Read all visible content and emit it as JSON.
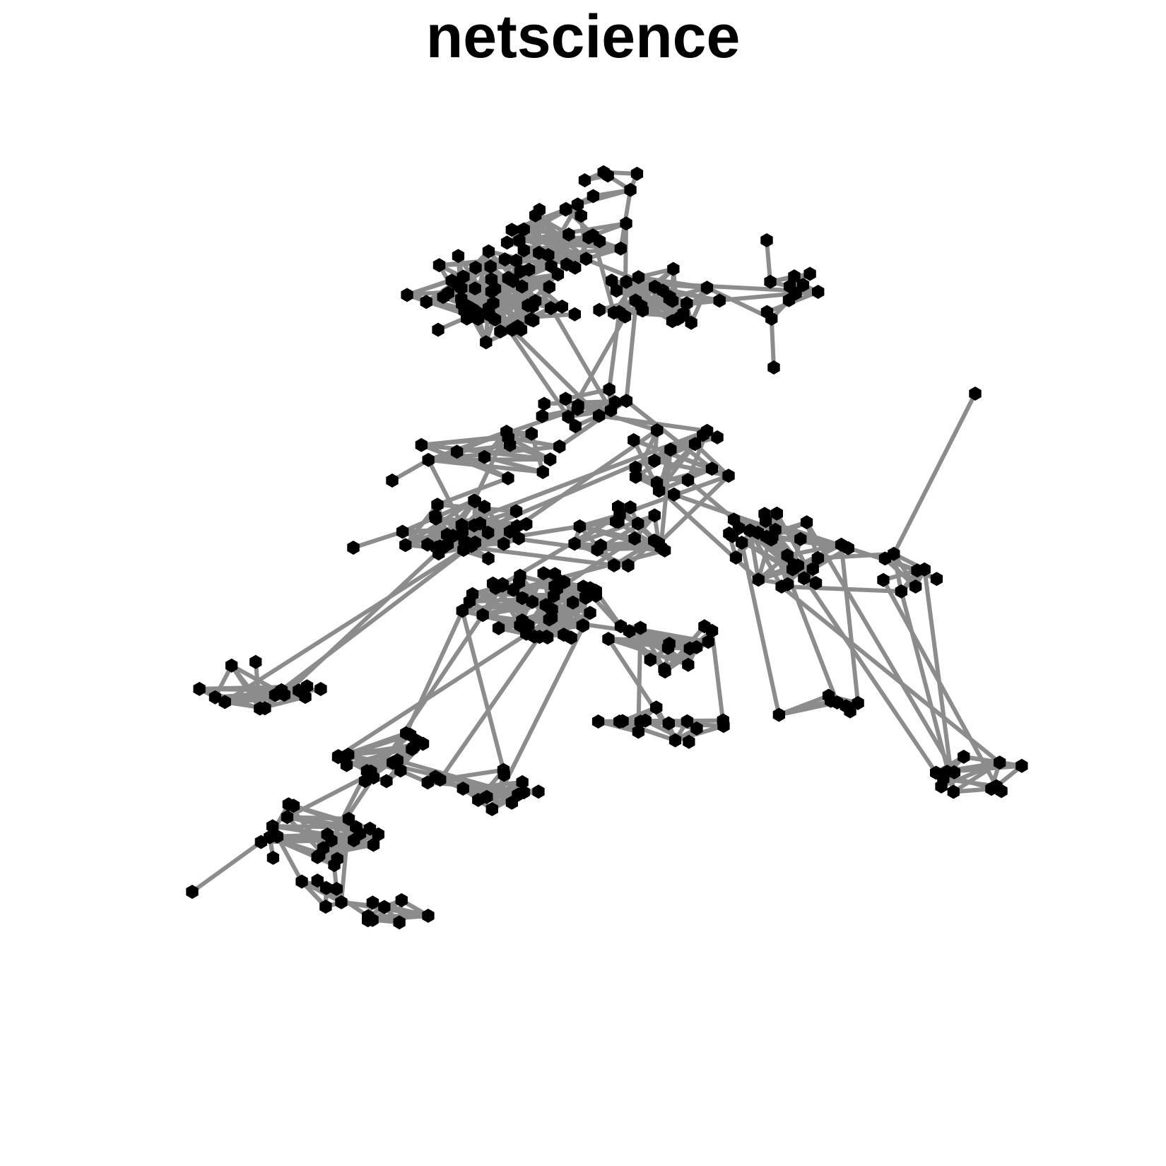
{
  "title": "netscience",
  "colors": {
    "background": "#ffffff",
    "edge": "#8c8c8c",
    "node": "#000000"
  },
  "node_shape": "hexagon"
}
